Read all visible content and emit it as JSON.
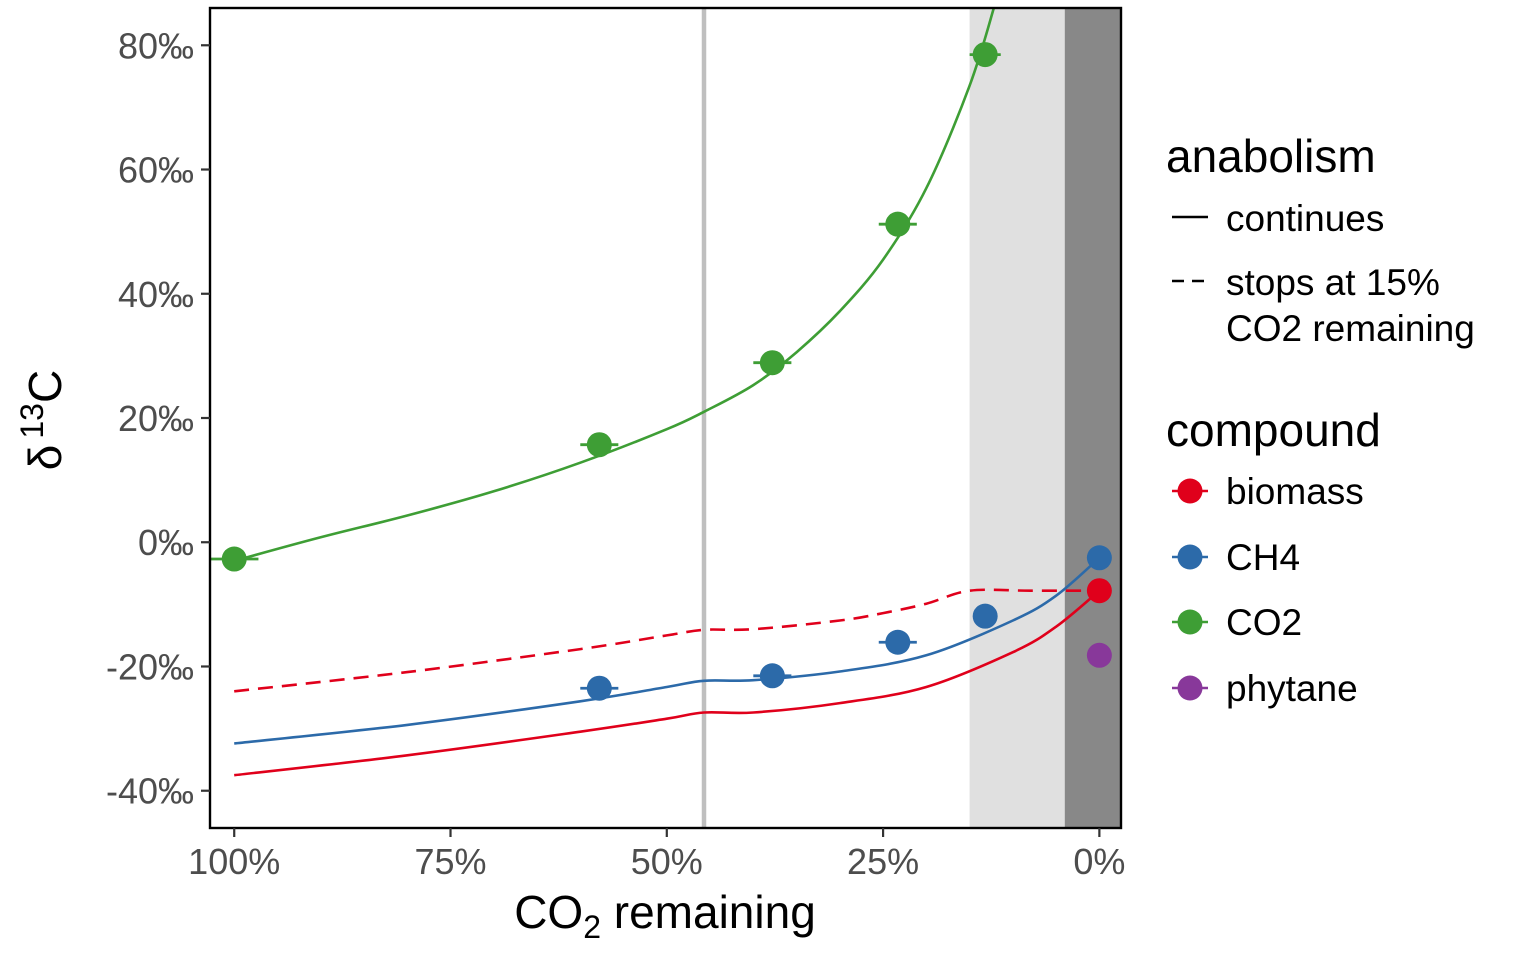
{
  "chart_data": {
    "type": "line",
    "xlabel": "CO2 remaining",
    "xlabel_main": "CO",
    "xlabel_sub": "2",
    "xlabel_rest": " remaining",
    "ylabel_delta": "δ",
    "ylabel_sup": "13",
    "ylabel_C": "C",
    "x_reversed": true,
    "xlim": [
      -2.5,
      102.8
    ],
    "ylim": [
      -46,
      86
    ],
    "xticks": [
      100,
      75,
      50,
      25,
      0
    ],
    "xtick_labels": [
      "100%",
      "75%",
      "50%",
      "25%",
      "0%"
    ],
    "yticks": [
      80,
      60,
      40,
      20,
      0,
      -20,
      -40
    ],
    "ytick_labels": [
      "80‰",
      "60‰",
      "40‰",
      "20‰",
      "0‰",
      "-20‰",
      "-40‰"
    ],
    "vline": {
      "x": 45.7,
      "color": "#bfbfbf"
    },
    "shaded_regions": [
      {
        "x_from": 15,
        "x_to": 4,
        "color": "#e0e0e0"
      },
      {
        "x_from": 4,
        "x_to": -2.5,
        "color": "#888888"
      }
    ],
    "colors": {
      "biomass": "#e0001b",
      "CH4": "#2c6aa9",
      "CO2": "#3e9e35",
      "phytane": "#88389a"
    },
    "curves": [
      {
        "compound": "CO2",
        "anabolism": "continues",
        "dash": false,
        "x": [
          100,
          90,
          80,
          70,
          60,
          50,
          45.7,
          40,
          35,
          30,
          25,
          20,
          15,
          12,
          9.5
        ],
        "y": [
          -3,
          0.8,
          4.3,
          8.2,
          12.8,
          18.2,
          21,
          25.3,
          30.6,
          37.2,
          45.5,
          57,
          73.5,
          87,
          100
        ]
      },
      {
        "compound": "CH4",
        "anabolism": "continues",
        "dash": false,
        "x": [
          100,
          80,
          60,
          50,
          45.7,
          40,
          30,
          20,
          10,
          5,
          0
        ],
        "y": [
          -32.4,
          -29.4,
          -25.6,
          -23.3,
          -22.3,
          -22.2,
          -20.8,
          -18.2,
          -12.6,
          -8.6,
          -2.5
        ]
      },
      {
        "compound": "biomass",
        "anabolism": "continues",
        "dash": false,
        "x": [
          100,
          80,
          60,
          50,
          45.7,
          40,
          30,
          20,
          10,
          5,
          0
        ],
        "y": [
          -37.5,
          -34.3,
          -30.5,
          -28.4,
          -27.4,
          -27.4,
          -25.9,
          -23.3,
          -17.7,
          -13.6,
          -7.8
        ]
      },
      {
        "compound": "biomass",
        "anabolism": "stops at 15% CO2 remaining",
        "dash": true,
        "x": [
          100,
          80,
          60,
          50,
          45.7,
          40,
          30,
          25,
          20,
          15,
          8,
          0
        ],
        "y": [
          -24,
          -20.9,
          -17.2,
          -15,
          -14.1,
          -14,
          -12.6,
          -11.4,
          -9.9,
          -7.8,
          -7.8,
          -7.8
        ]
      }
    ],
    "points": [
      {
        "compound": "CO2",
        "x": 100,
        "y": -2.7,
        "xerr": 2.8
      },
      {
        "compound": "CO2",
        "x": 57.8,
        "y": 15.7,
        "xerr": 2.2
      },
      {
        "compound": "CO2",
        "x": 37.8,
        "y": 28.9,
        "xerr": 2.2
      },
      {
        "compound": "CO2",
        "x": 23.3,
        "y": 51.2,
        "xerr": 2.2
      },
      {
        "compound": "CO2",
        "x": 13.2,
        "y": 78.5,
        "xerr": 1.8
      },
      {
        "compound": "CH4",
        "x": 57.8,
        "y": -23.5,
        "xerr": 2.2
      },
      {
        "compound": "CH4",
        "x": 37.8,
        "y": -21.5,
        "xerr": 2.2
      },
      {
        "compound": "CH4",
        "x": 23.3,
        "y": -16.1,
        "xerr": 2.2
      },
      {
        "compound": "CH4",
        "x": 13.2,
        "y": -11.9,
        "xerr": 0
      },
      {
        "compound": "CH4",
        "x": 0,
        "y": -2.5,
        "xerr": 0
      },
      {
        "compound": "biomass",
        "x": 0,
        "y": -7.8,
        "xerr": 0
      },
      {
        "compound": "phytane",
        "x": 0,
        "y": -18.2,
        "xerr": 0
      }
    ],
    "legend": {
      "placement": "right",
      "anabolism_title": "anabolism",
      "anabolism_items": [
        {
          "label_lines": [
            "continues"
          ],
          "dash": false
        },
        {
          "label_lines": [
            "stops at 15%",
            "CO2 remaining"
          ],
          "dash": true
        }
      ],
      "compound_title": "compound",
      "compound_items": [
        "biomass",
        "CH4",
        "CO2",
        "phytane"
      ]
    }
  }
}
